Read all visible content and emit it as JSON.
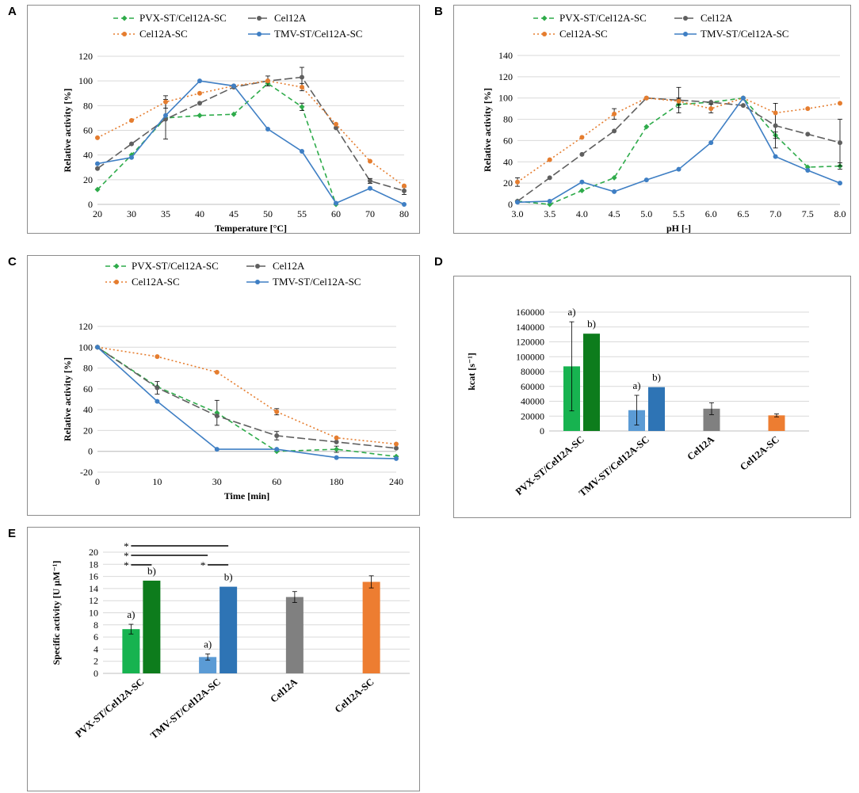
{
  "panels": [
    {
      "id": "A",
      "letter": "A"
    },
    {
      "id": "B",
      "letter": "B"
    },
    {
      "id": "C",
      "letter": "C"
    },
    {
      "id": "D",
      "letter": "D"
    },
    {
      "id": "E",
      "letter": "E"
    }
  ],
  "colors": {
    "pvx": "#2eab4a",
    "cel12a": "#5f5f5f",
    "cel12asc": "#e57d2f",
    "tmv": "#3f7fc4",
    "pvx_light": "#17b350",
    "pvx_dark": "#0d7c1c",
    "tmv_light": "#5b9bd5",
    "tmv_dark": "#2e74b5",
    "grey_bar": "#808080",
    "orange_bar": "#ed7d31",
    "grid": "#d9d9d9"
  },
  "chart_data": [
    {
      "id": "A",
      "type": "line",
      "xlabel": "Temperature [°C]",
      "ylabel": "Relative activity [%]",
      "categories": [
        "20",
        "30",
        "35",
        "40",
        "45",
        "50",
        "55",
        "60",
        "70",
        "80"
      ],
      "ylim": [
        0,
        120
      ],
      "yticks": [
        "0",
        "20",
        "40",
        "60",
        "80",
        "100",
        "120"
      ],
      "legend": [
        "PVX-ST/Cel12A-SC",
        "Cel12A",
        "Cel12A-SC",
        "TMV-ST/Cel12A-SC"
      ],
      "series": [
        {
          "name": "PVX-ST/Cel12A-SC",
          "key": "pvx",
          "style": "dash",
          "marker": "diamond",
          "values": [
            12,
            40,
            70,
            72,
            73,
            98,
            79,
            0,
            null,
            null
          ],
          "err": [
            0,
            0,
            0,
            0,
            0,
            0,
            3,
            0,
            0,
            0
          ]
        },
        {
          "name": "Cel12A",
          "key": "cel12a",
          "style": "longdash",
          "marker": "circle",
          "values": [
            29,
            49,
            69,
            82,
            95,
            100,
            103,
            62,
            19,
            11
          ],
          "err": [
            0,
            0,
            16,
            0,
            0,
            4,
            8,
            0,
            2,
            3
          ]
        },
        {
          "name": "Cel12A-SC",
          "key": "cel12asc",
          "style": "dot",
          "marker": "circle",
          "values": [
            54,
            68,
            83,
            90,
            96,
            100,
            95,
            65,
            35,
            15
          ],
          "err": [
            0,
            0,
            5,
            0,
            0,
            0,
            3,
            0,
            0,
            0
          ]
        },
        {
          "name": "TMV-ST/Cel12A-SC",
          "key": "tmv",
          "style": "solid",
          "marker": "circle",
          "values": [
            33,
            38,
            72,
            100,
            96,
            61,
            43,
            1,
            13,
            0
          ],
          "err": [
            0,
            0,
            0,
            0,
            0,
            0,
            0,
            0,
            0,
            0
          ]
        }
      ]
    },
    {
      "id": "B",
      "type": "line",
      "xlabel": "pH [-]",
      "ylabel": "Relative activity [%]",
      "categories": [
        "3.0",
        "3.5",
        "4.0",
        "4.5",
        "5.0",
        "5.5",
        "6.0",
        "6.5",
        "7.0",
        "7.5",
        "8.0"
      ],
      "ylim": [
        0,
        140
      ],
      "yticks": [
        "0",
        "20",
        "40",
        "60",
        "80",
        "100",
        "120",
        "140"
      ],
      "legend": [
        "PVX-ST/Cel12A-SC",
        "Cel12A",
        "Cel12A-SC",
        "TMV-ST/Cel12A-SC"
      ],
      "series": [
        {
          "name": "PVX-ST/Cel12A-SC",
          "key": "pvx",
          "style": "dash",
          "marker": "diamond",
          "values": [
            3,
            0,
            13,
            25,
            73,
            94,
            96,
            100,
            65,
            35,
            36
          ],
          "err": [
            0,
            0,
            0,
            0,
            0,
            3,
            0,
            0,
            3,
            0,
            3
          ]
        },
        {
          "name": "Cel12A",
          "key": "cel12a",
          "style": "longdash",
          "marker": "circle",
          "values": [
            3,
            25,
            47,
            69,
            100,
            98,
            96,
            93,
            74,
            66,
            58
          ],
          "err": [
            0,
            0,
            0,
            0,
            0,
            12,
            0,
            0,
            21,
            0,
            22
          ]
        },
        {
          "name": "Cel12A-SC",
          "key": "cel12asc",
          "style": "dot",
          "marker": "circle",
          "values": [
            21,
            42,
            63,
            85,
            100,
            97,
            90,
            100,
            86,
            90,
            95
          ],
          "err": [
            4,
            0,
            0,
            5,
            0,
            3,
            4,
            0,
            0,
            0,
            0
          ]
        },
        {
          "name": "TMV-ST/Cel12A-SC",
          "key": "tmv",
          "style": "solid",
          "marker": "circle",
          "values": [
            2,
            3,
            21,
            12,
            23,
            33,
            58,
            100,
            45,
            32,
            20
          ],
          "err": [
            0,
            0,
            0,
            0,
            0,
            0,
            0,
            0,
            0,
            0,
            0
          ]
        }
      ]
    },
    {
      "id": "C",
      "type": "line",
      "xlabel": "Time [min]",
      "ylabel": "Relative activity [%]",
      "categories": [
        "0",
        "10",
        "30",
        "60",
        "180",
        "240"
      ],
      "ylim": [
        -20,
        120
      ],
      "yticks": [
        "-20",
        "0",
        "20",
        "40",
        "60",
        "80",
        "100",
        "120"
      ],
      "legend": [
        "PVX-ST/Cel12A-SC",
        "Cel12A",
        "Cel12A-SC",
        "TMV-ST/Cel12A-SC"
      ],
      "series": [
        {
          "name": "PVX-ST/Cel12A-SC",
          "key": "pvx",
          "style": "dash",
          "marker": "diamond",
          "values": [
            100,
            62,
            37,
            0,
            2,
            -5
          ],
          "err": [
            0,
            0,
            12,
            0,
            3,
            0
          ]
        },
        {
          "name": "Cel12A",
          "key": "cel12a",
          "style": "longdash",
          "marker": "circle",
          "values": [
            100,
            61,
            34,
            15,
            9,
            3
          ],
          "err": [
            0,
            6,
            0,
            4,
            0,
            0
          ]
        },
        {
          "name": "Cel12A-SC",
          "key": "cel12asc",
          "style": "dot",
          "marker": "circle",
          "values": [
            100,
            91,
            76,
            38,
            13,
            7
          ],
          "err": [
            0,
            0,
            0,
            3,
            0,
            0
          ]
        },
        {
          "name": "TMV-ST/Cel12A-SC",
          "key": "tmv",
          "style": "solid",
          "marker": "circle",
          "values": [
            100,
            48,
            2,
            2,
            -6,
            -7
          ],
          "err": [
            0,
            0,
            0,
            0,
            0,
            0
          ]
        }
      ]
    },
    {
      "id": "D",
      "type": "bar",
      "ylabel": "kcat [s⁻¹]",
      "ylim": [
        0,
        160000
      ],
      "yticks": [
        "0",
        "20000",
        "40000",
        "60000",
        "80000",
        "100000",
        "120000",
        "140000",
        "160000"
      ],
      "groups": [
        "PVX-ST/Cel12A-SC",
        "TMV-ST/Cel12A-SC",
        "Cel12A",
        "Cel12A-SC"
      ],
      "bars": [
        {
          "group": 0,
          "slot": 0,
          "value": 87000,
          "err": 60000,
          "color": "pvx_light",
          "label": "a)"
        },
        {
          "group": 0,
          "slot": 1,
          "value": 131000,
          "err": 0,
          "color": "pvx_dark",
          "label": "b)"
        },
        {
          "group": 1,
          "slot": 0,
          "value": 28000,
          "err": 20000,
          "color": "tmv_light",
          "label": "a)"
        },
        {
          "group": 1,
          "slot": 1,
          "value": 59000,
          "err": 0,
          "color": "tmv_dark",
          "label": "b)"
        },
        {
          "group": 2,
          "slot": 0.5,
          "value": 30000,
          "err": 8000,
          "color": "grey_bar",
          "label": ""
        },
        {
          "group": 3,
          "slot": 0.5,
          "value": 21000,
          "err": 2000,
          "color": "orange_bar",
          "label": ""
        }
      ]
    },
    {
      "id": "E",
      "type": "bar",
      "ylabel": "Specific activity [U µM⁻¹]",
      "ylim": [
        0,
        20
      ],
      "yticks": [
        "0",
        "2",
        "4",
        "6",
        "8",
        "10",
        "12",
        "14",
        "16",
        "18",
        "20"
      ],
      "groups": [
        "PVX-ST/Cel12A-SC",
        "TMV-ST/Cel12A-SC",
        "Cel12A",
        "Cel12A-SC"
      ],
      "bars": [
        {
          "group": 0,
          "slot": 0,
          "value": 7.3,
          "err": 0.8,
          "color": "pvx_light",
          "label": "a)"
        },
        {
          "group": 0,
          "slot": 1,
          "value": 15.3,
          "err": 0,
          "color": "pvx_dark",
          "label": "b)"
        },
        {
          "group": 1,
          "slot": 0,
          "value": 2.7,
          "err": 0.5,
          "color": "tmv_light",
          "label": "a)"
        },
        {
          "group": 1,
          "slot": 1,
          "value": 14.3,
          "err": 0,
          "color": "tmv_dark",
          "label": "b)"
        },
        {
          "group": 2,
          "slot": 0.5,
          "value": 12.6,
          "err": 0.9,
          "color": "grey_bar",
          "label": ""
        },
        {
          "group": 3,
          "slot": 0.5,
          "value": 15.1,
          "err": 1.0,
          "color": "orange_bar",
          "label": ""
        }
      ],
      "significance": [
        {
          "from": [
            0,
            0
          ],
          "to": [
            1,
            1
          ],
          "level": 3,
          "mark": "*"
        },
        {
          "from": [
            0,
            0
          ],
          "to": [
            1,
            0
          ],
          "level": 2,
          "mark": "*"
        },
        {
          "from": [
            0,
            0
          ],
          "to": [
            0,
            1
          ],
          "level": 1,
          "mark": "*"
        },
        {
          "from": [
            1,
            0
          ],
          "to": [
            1,
            1
          ],
          "level": 1,
          "mark": "*"
        }
      ]
    }
  ]
}
